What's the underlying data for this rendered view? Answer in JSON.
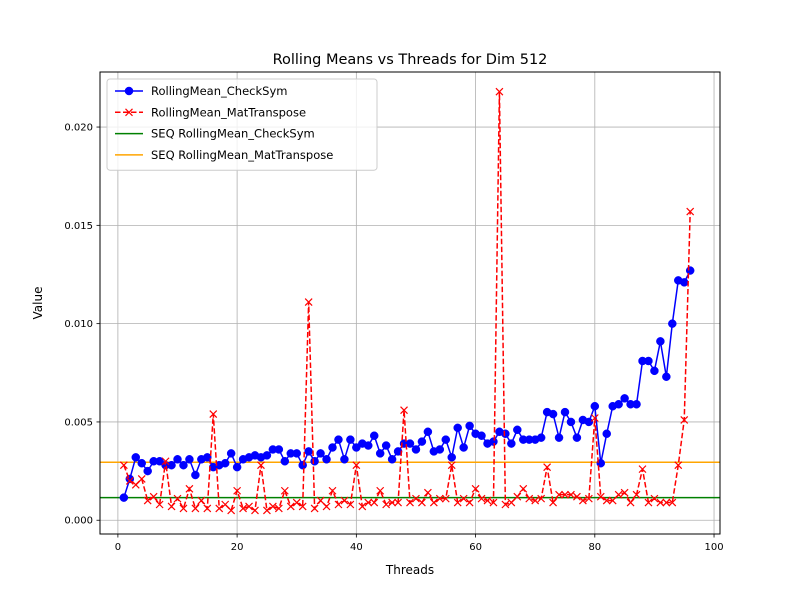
{
  "chart_data": {
    "type": "line",
    "title": "Rolling Means vs Threads for Dim 512",
    "xlabel": "Threads",
    "ylabel": "Value",
    "xlim": [
      -3,
      101
    ],
    "ylim": [
      -0.0007,
      0.0228
    ],
    "xticks": [
      0,
      20,
      40,
      60,
      80,
      100
    ],
    "yticks": [
      0.0,
      0.005,
      0.01,
      0.015,
      0.02
    ],
    "ytick_labels": [
      "0.000",
      "0.005",
      "0.010",
      "0.015",
      "0.020"
    ],
    "grid": true,
    "legend_position": "top-left",
    "series": [
      {
        "name": "RollingMean_CheckSym",
        "color": "#0000ff",
        "marker": "circle",
        "linestyle": "solid",
        "x": [
          1,
          2,
          3,
          4,
          5,
          6,
          7,
          8,
          9,
          10,
          11,
          12,
          13,
          14,
          15,
          16,
          17,
          18,
          19,
          20,
          21,
          22,
          23,
          24,
          25,
          26,
          27,
          28,
          29,
          30,
          31,
          32,
          33,
          34,
          35,
          36,
          37,
          38,
          39,
          40,
          41,
          42,
          43,
          44,
          45,
          46,
          47,
          48,
          49,
          50,
          51,
          52,
          53,
          54,
          55,
          56,
          57,
          58,
          59,
          60,
          61,
          62,
          63,
          64,
          65,
          66,
          67,
          68,
          69,
          70,
          71,
          72,
          73,
          74,
          75,
          76,
          77,
          78,
          79,
          80,
          81,
          82,
          83,
          84,
          85,
          86,
          87,
          88,
          89,
          90,
          91,
          92,
          93,
          94,
          95,
          96
        ],
        "y": [
          0.00115,
          0.0021,
          0.0032,
          0.0029,
          0.0025,
          0.003,
          0.003,
          0.0028,
          0.0028,
          0.0031,
          0.0028,
          0.0031,
          0.0023,
          0.0031,
          0.0032,
          0.0027,
          0.0028,
          0.0029,
          0.0034,
          0.0027,
          0.0031,
          0.0032,
          0.0033,
          0.0032,
          0.0033,
          0.0036,
          0.0036,
          0.003,
          0.0034,
          0.0034,
          0.0028,
          0.0035,
          0.003,
          0.0034,
          0.0031,
          0.0037,
          0.0041,
          0.0031,
          0.0041,
          0.0037,
          0.0039,
          0.0038,
          0.0043,
          0.0034,
          0.0038,
          0.0031,
          0.0035,
          0.0039,
          0.0039,
          0.0036,
          0.004,
          0.0045,
          0.0035,
          0.0036,
          0.0041,
          0.0032,
          0.0047,
          0.0037,
          0.0048,
          0.0044,
          0.0043,
          0.0039,
          0.004,
          0.0045,
          0.0044,
          0.0039,
          0.0046,
          0.0041,
          0.0041,
          0.0041,
          0.0042,
          0.0055,
          0.0054,
          0.0042,
          0.0055,
          0.005,
          0.0042,
          0.0051,
          0.005,
          0.0058,
          0.0029,
          0.0044,
          0.0058,
          0.0059,
          0.0062,
          0.0059,
          0.0059,
          0.0081,
          0.0081,
          0.0076,
          0.0091,
          0.0073,
          0.01,
          0.0122,
          0.0121,
          0.0127
        ]
      },
      {
        "name": "RollingMean_MatTranspose",
        "color": "#ff0000",
        "marker": "x",
        "linestyle": "dashed",
        "x": [
          1,
          2,
          3,
          4,
          5,
          6,
          7,
          8,
          9,
          10,
          11,
          12,
          13,
          14,
          15,
          16,
          17,
          18,
          19,
          20,
          21,
          22,
          23,
          24,
          25,
          26,
          27,
          28,
          29,
          30,
          31,
          32,
          33,
          34,
          35,
          36,
          37,
          38,
          39,
          40,
          41,
          42,
          43,
          44,
          45,
          46,
          47,
          48,
          49,
          50,
          51,
          52,
          53,
          54,
          55,
          56,
          57,
          58,
          59,
          60,
          61,
          62,
          63,
          64,
          65,
          66,
          67,
          68,
          69,
          70,
          71,
          72,
          73,
          74,
          75,
          76,
          77,
          78,
          79,
          80,
          81,
          82,
          83,
          84,
          85,
          86,
          87,
          88,
          89,
          90,
          91,
          92,
          93,
          94,
          95,
          96
        ],
        "y": [
          0.0028,
          0.002,
          0.0018,
          0.0021,
          0.001,
          0.0012,
          0.0008,
          0.003,
          0.0007,
          0.0011,
          0.0006,
          0.0016,
          0.0006,
          0.001,
          0.0006,
          0.0054,
          0.0006,
          0.0008,
          0.0005,
          0.0015,
          0.0006,
          0.0007,
          0.0005,
          0.0028,
          0.0005,
          0.0007,
          0.0006,
          0.0015,
          0.0007,
          0.0009,
          0.0007,
          0.0111,
          0.0006,
          0.001,
          0.0007,
          0.0015,
          0.0008,
          0.001,
          0.0008,
          0.0028,
          0.0007,
          0.0009,
          0.0009,
          0.0015,
          0.0008,
          0.0009,
          0.0009,
          0.0056,
          0.0009,
          0.0011,
          0.0009,
          0.0014,
          0.0009,
          0.0011,
          0.0011,
          0.0028,
          0.0009,
          0.0011,
          0.0009,
          0.0016,
          0.0011,
          0.001,
          0.0009,
          0.0218,
          0.0008,
          0.0009,
          0.0012,
          0.0016,
          0.0011,
          0.001,
          0.0011,
          0.0027,
          0.0009,
          0.0013,
          0.0013,
          0.0013,
          0.0012,
          0.001,
          0.0011,
          0.0052,
          0.0012,
          0.001,
          0.001,
          0.0013,
          0.0014,
          0.0009,
          0.0013,
          0.0026,
          0.0009,
          0.0011,
          0.0009,
          0.0009,
          0.0009,
          0.0028,
          0.0051,
          0.0157
        ]
      },
      {
        "name": "SEQ RollingMean_CheckSym",
        "color": "#008000",
        "type": "hline",
        "y": 0.00115
      },
      {
        "name": "SEQ RollingMean_MatTranspose",
        "color": "#ffa500",
        "type": "hline",
        "y": 0.00295
      }
    ]
  }
}
